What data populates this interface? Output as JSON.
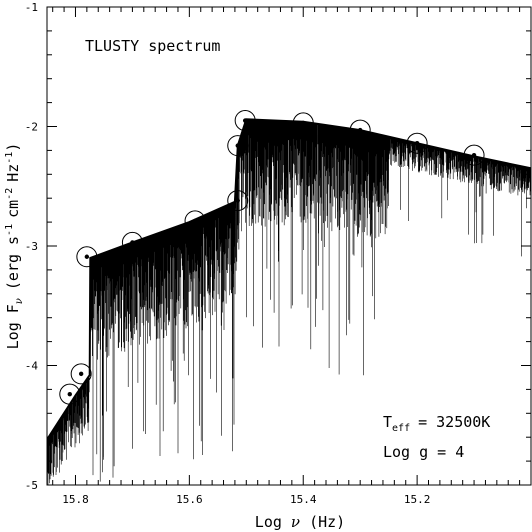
{
  "chart_data": {
    "type": "line",
    "title": "TLUSTY spectrum",
    "xlabel": "Log ν (Hz)",
    "ylabel": "Log Fν (erg s⁻¹ cm⁻² Hz⁻¹)",
    "xlabel_main": "Log",
    "xlabel_sym": "ν",
    "xlabel_unit": "(Hz)",
    "ylabel_main": "Log F",
    "ylabel_sub": "ν",
    "ylabel_unit": "(erg s",
    "ylabel_cm": "cm",
    "ylabel_hz": "Hz",
    "xlim": [
      15.85,
      15.0
    ],
    "ylim": [
      -5,
      -1
    ],
    "x_ticks": [
      15.8,
      15.6,
      15.4,
      15.2
    ],
    "x_tick_labels": [
      "15.8",
      "15.6",
      "15.4",
      "15.2"
    ],
    "y_ticks": [
      -5,
      -4,
      -3,
      -2,
      -1
    ],
    "y_tick_labels": [
      "-5",
      "-4",
      "-3",
      "-2",
      "-1"
    ],
    "annotations": {
      "teff_label": "T",
      "teff_sub": "eff",
      "teff_value": "= 32500K",
      "logg": "Log g = 4"
    },
    "continuum": [
      {
        "x": 15.85,
        "y": -4.62
      },
      {
        "x": 15.8,
        "y": -4.25
      },
      {
        "x": 15.775,
        "y": -4.08
      },
      {
        "x": 15.774,
        "y": -3.1
      },
      {
        "x": 15.7,
        "y": -2.97
      },
      {
        "x": 15.6,
        "y": -2.8
      },
      {
        "x": 15.52,
        "y": -2.63
      },
      {
        "x": 15.515,
        "y": -2.16
      },
      {
        "x": 15.5,
        "y": -1.94
      },
      {
        "x": 15.4,
        "y": -1.96
      },
      {
        "x": 15.3,
        "y": -2.03
      },
      {
        "x": 15.2,
        "y": -2.14
      },
      {
        "x": 15.1,
        "y": -2.25
      },
      {
        "x": 15.0,
        "y": -2.35
      }
    ],
    "circled_points": [
      {
        "x": 15.81,
        "y": -4.24
      },
      {
        "x": 15.79,
        "y": -4.07
      },
      {
        "x": 15.78,
        "y": -3.09
      },
      {
        "x": 15.7,
        "y": -2.97
      },
      {
        "x": 15.59,
        "y": -2.79
      },
      {
        "x": 15.515,
        "y": -2.62
      },
      {
        "x": 15.515,
        "y": -2.16
      },
      {
        "x": 15.502,
        "y": -1.95
      },
      {
        "x": 15.4,
        "y": -1.97
      },
      {
        "x": 15.3,
        "y": -2.03
      },
      {
        "x": 15.2,
        "y": -2.14
      },
      {
        "x": 15.1,
        "y": -2.24
      }
    ],
    "absorption_lines": true,
    "grid": false,
    "legend": "none"
  }
}
